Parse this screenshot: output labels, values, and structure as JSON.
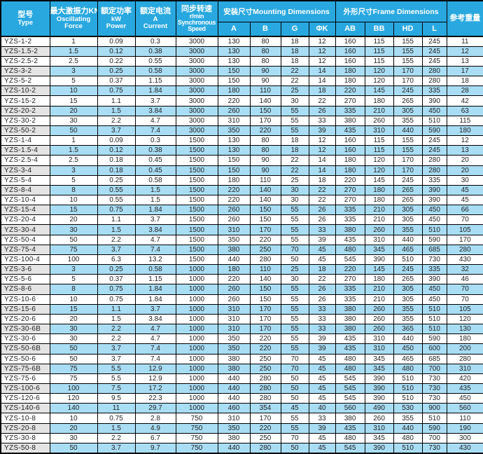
{
  "table": {
    "headers": {
      "type": [
        "型号",
        "Type"
      ],
      "force": [
        "最大激振力KN",
        "Oscillating",
        "Force"
      ],
      "power": [
        "额定功率",
        "kW",
        "Power"
      ],
      "current": [
        "额定电流",
        "A",
        "Current"
      ],
      "speed": [
        "同步转速",
        "r/min",
        "Synchronous",
        "Speed"
      ],
      "mounting": "安装尺寸Mounting Dimensions",
      "frame": "外形尺寸Frame Dimensions",
      "weight": "参考重量",
      "sub": [
        "A",
        "B",
        "G",
        "ΦK",
        "AB",
        "BB",
        "HD",
        "L"
      ]
    },
    "rows": [
      [
        "YZS-1-2",
        "1",
        "0.09",
        "0.3",
        "3000",
        "130",
        "80",
        "18",
        "12",
        "160",
        "115",
        "155",
        "245",
        "11"
      ],
      [
        "YZS-1.5-2",
        "1.5",
        "0.12",
        "0.38",
        "3000",
        "130",
        "80",
        "18",
        "12",
        "160",
        "115",
        "155",
        "245",
        "12"
      ],
      [
        "YZS-2.5-2",
        "2.5",
        "0.22",
        "0.55",
        "3000",
        "130",
        "80",
        "18",
        "12",
        "160",
        "115",
        "155",
        "245",
        "13"
      ],
      [
        "YZS-3-2",
        "3",
        "0.25",
        "0.58",
        "3000",
        "150",
        "90",
        "22",
        "14",
        "180",
        "120",
        "170",
        "280",
        "17"
      ],
      [
        "YZS-5-2",
        "5",
        "0.37",
        "1.15",
        "3000",
        "150",
        "90",
        "22",
        "14",
        "180",
        "120",
        "170",
        "280",
        "18"
      ],
      [
        "YZS-10-2",
        "10",
        "0.75",
        "1.84",
        "3000",
        "180",
        "110",
        "25",
        "18",
        "220",
        "145",
        "245",
        "335",
        "28"
      ],
      [
        "YZS-15-2",
        "15",
        "1.1",
        "3.7",
        "3000",
        "220",
        "140",
        "30",
        "22",
        "270",
        "180",
        "265",
        "390",
        "42"
      ],
      [
        "YZS-20-2",
        "20",
        "1.5",
        "3.84",
        "3000",
        "260",
        "150",
        "55",
        "26",
        "335",
        "210",
        "305",
        "450",
        "63"
      ],
      [
        "YZS-30-2",
        "30",
        "2.2",
        "4.7",
        "3000",
        "310",
        "170",
        "55",
        "33",
        "380",
        "260",
        "355",
        "510",
        "115"
      ],
      [
        "YZS-50-2",
        "50",
        "3.7",
        "7.4",
        "3000",
        "350",
        "220",
        "55",
        "39",
        "435",
        "310",
        "440",
        "590",
        "180"
      ],
      [
        "YZS-1-4",
        "1",
        "0.09",
        "0.3",
        "1500",
        "130",
        "80",
        "18",
        "12",
        "160",
        "115",
        "155",
        "245",
        "12"
      ],
      [
        "YZS-1.5-4",
        "1.5",
        "0.12",
        "0.38",
        "1500",
        "130",
        "80",
        "18",
        "12",
        "160",
        "115",
        "155",
        "245",
        "13"
      ],
      [
        "YZS-2.5-4",
        "2.5",
        "0.18",
        "0.45",
        "1500",
        "150",
        "90",
        "22",
        "14",
        "180",
        "120",
        "170",
        "280",
        "20"
      ],
      [
        "YZS-3-4",
        "3",
        "0.18",
        "0.45",
        "1500",
        "150",
        "90",
        "22",
        "14",
        "180",
        "120",
        "170",
        "280",
        "20"
      ],
      [
        "YZS-5-4",
        "5",
        "0.25",
        "0.58",
        "1500",
        "180",
        "110",
        "25",
        "18",
        "220",
        "145",
        "245",
        "335",
        "30"
      ],
      [
        "YZS-8-4",
        "8",
        "0.55",
        "1.5",
        "1500",
        "220",
        "140",
        "30",
        "22",
        "270",
        "180",
        "265",
        "390",
        "45"
      ],
      [
        "YZS-10-4",
        "10",
        "0.55",
        "1.5",
        "1500",
        "220",
        "140",
        "30",
        "22",
        "270",
        "180",
        "265",
        "390",
        "45"
      ],
      [
        "YZS-15-4",
        "15",
        "0.75",
        "1.84",
        "1500",
        "260",
        "150",
        "55",
        "26",
        "335",
        "210",
        "305",
        "450",
        "66"
      ],
      [
        "YZS-20-4",
        "20",
        "1.1",
        "3.7",
        "1500",
        "260",
        "150",
        "55",
        "26",
        "335",
        "210",
        "305",
        "450",
        "70"
      ],
      [
        "YZS-30-4",
        "30",
        "1.5",
        "3.84",
        "1500",
        "310",
        "170",
        "55",
        "33",
        "380",
        "260",
        "355",
        "510",
        "105"
      ],
      [
        "YZS-50-4",
        "50",
        "2.2",
        "4.7",
        "1500",
        "350",
        "220",
        "55",
        "39",
        "435",
        "310",
        "440",
        "590",
        "170"
      ],
      [
        "YZS-75-4",
        "75",
        "3.7",
        "7.4",
        "1500",
        "380",
        "250",
        "70",
        "45",
        "480",
        "345",
        "465",
        "685",
        "280"
      ],
      [
        "YZS-100-4",
        "100",
        "6.3",
        "13.2",
        "1500",
        "440",
        "280",
        "50",
        "45",
        "545",
        "390",
        "510",
        "730",
        "430"
      ],
      [
        "YZS-3-6",
        "3",
        "0.25",
        "0.58",
        "1000",
        "180",
        "110",
        "25",
        "18",
        "220",
        "145",
        "245",
        "335",
        "32"
      ],
      [
        "YZS-5-6",
        "5",
        "0.37",
        "1.15",
        "1000",
        "220",
        "140",
        "30",
        "22",
        "270",
        "180",
        "265",
        "390",
        "46"
      ],
      [
        "YZS-8-6",
        "8",
        "0.75",
        "1.84",
        "1000",
        "260",
        "150",
        "55",
        "26",
        "335",
        "210",
        "305",
        "450",
        "70"
      ],
      [
        "YZS-10-6",
        "10",
        "0.75",
        "1.84",
        "1000",
        "260",
        "150",
        "55",
        "26",
        "335",
        "210",
        "305",
        "450",
        "70"
      ],
      [
        "YZS-15-6",
        "15",
        "1.1",
        "3.7",
        "1000",
        "310",
        "170",
        "55",
        "33",
        "380",
        "260",
        "355",
        "510",
        "105"
      ],
      [
        "YZS-20-6",
        "20",
        "1.5",
        "3.84",
        "1000",
        "310",
        "170",
        "55",
        "33",
        "380",
        "260",
        "355",
        "510",
        "120"
      ],
      [
        "YZS-30-6B",
        "30",
        "2.2",
        "4.7",
        "1000",
        "310",
        "170",
        "55",
        "33",
        "380",
        "260",
        "365",
        "510",
        "130"
      ],
      [
        "YZS-30-6",
        "30",
        "2.2",
        "4.7",
        "1000",
        "350",
        "220",
        "55",
        "39",
        "435",
        "310",
        "440",
        "590",
        "180"
      ],
      [
        "YZS-50-6B",
        "50",
        "3.7",
        "7.4",
        "1000",
        "350",
        "220",
        "55",
        "39",
        "435",
        "310",
        "450",
        "600",
        "200"
      ],
      [
        "YZS-50-6",
        "50",
        "3.7",
        "7.4",
        "1000",
        "380",
        "250",
        "70",
        "45",
        "480",
        "345",
        "465",
        "685",
        "280"
      ],
      [
        "YZS-75-6B",
        "75",
        "5.5",
        "12.9",
        "1000",
        "380",
        "250",
        "70",
        "45",
        "480",
        "345",
        "480",
        "700",
        "310"
      ],
      [
        "YZS-75-6",
        "75",
        "5.5",
        "12.9",
        "1000",
        "440",
        "280",
        "50",
        "45",
        "545",
        "390",
        "510",
        "730",
        "420"
      ],
      [
        "YZS-100-6",
        "100",
        "7.5",
        "17.2",
        "1000",
        "440",
        "280",
        "50",
        "45",
        "545",
        "390",
        "510",
        "730",
        "435"
      ],
      [
        "YZS-120-6",
        "120",
        "9.5",
        "22.3",
        "1000",
        "440",
        "280",
        "50",
        "45",
        "545",
        "390",
        "510",
        "730",
        "450"
      ],
      [
        "YZS-140-6",
        "140",
        "11",
        "29.7",
        "1000",
        "460",
        "354",
        "45",
        "40",
        "560",
        "490",
        "530",
        "900",
        "560"
      ],
      [
        "YZS-10-8",
        "10",
        "0.75",
        "2.8",
        "750",
        "310",
        "170",
        "55",
        "33",
        "380",
        "260",
        "355",
        "510",
        "110"
      ],
      [
        "YZS-20-8",
        "20",
        "1.5",
        "4.9",
        "750",
        "350",
        "220",
        "55",
        "39",
        "435",
        "310",
        "440",
        "590",
        "190"
      ],
      [
        "YZS-30-8",
        "30",
        "2.2",
        "6.7",
        "750",
        "380",
        "250",
        "70",
        "45",
        "480",
        "345",
        "480",
        "700",
        "300"
      ],
      [
        "YZS-50-8",
        "50",
        "3.7",
        "9.7",
        "750",
        "440",
        "280",
        "50",
        "45",
        "545",
        "390",
        "510",
        "730",
        "430"
      ]
    ]
  },
  "colors": {
    "header_bg": "#29a8e0",
    "stripe_blue": "#a9ddf4",
    "stripe_gray": "#e4e4e4",
    "border": "#000000"
  }
}
